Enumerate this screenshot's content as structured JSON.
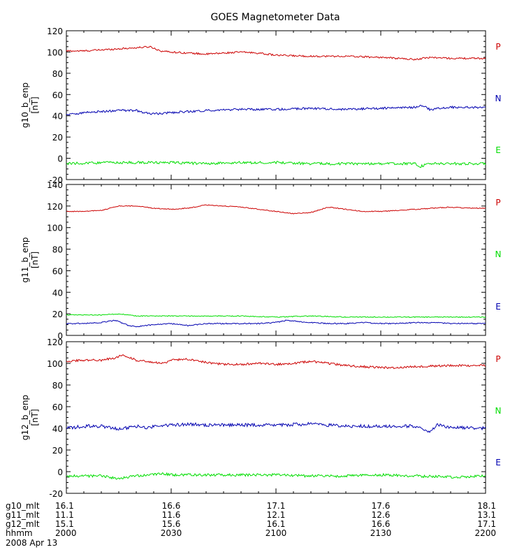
{
  "title": "GOES Magnetometer Data",
  "date_label": "2008 Apr 13",
  "colors": {
    "P": "#cc0000",
    "N": "#0000b0",
    "E": "#00dd00",
    "axis": "#000000"
  },
  "chart_data": [
    {
      "type": "line",
      "ylabel": "g10_b_enp",
      "yunit": "[nT]",
      "ylim": [
        -20,
        120
      ],
      "yticks": [
        -20,
        0,
        20,
        40,
        60,
        80,
        100,
        120
      ],
      "xlim": [
        0,
        120
      ],
      "legend": [
        "P",
        "N",
        "E"
      ],
      "legend_colors": [
        "#cc0000",
        "#0000b0",
        "#00dd00"
      ],
      "series": [
        {
          "name": "P",
          "color": "#cc0000",
          "noise": 0.8,
          "x": [
            0,
            5,
            10,
            15,
            20,
            24,
            27,
            30,
            35,
            40,
            45,
            50,
            55,
            60,
            70,
            80,
            90,
            100,
            104,
            110,
            120
          ],
          "y": [
            101,
            101,
            102,
            103,
            104,
            105,
            101,
            100,
            99,
            98,
            99,
            100,
            99,
            97,
            96,
            96,
            95,
            93,
            95,
            94,
            94
          ]
        },
        {
          "name": "N",
          "color": "#0000b0",
          "noise": 1.0,
          "x": [
            0,
            5,
            10,
            15,
            20,
            22,
            24,
            27,
            30,
            35,
            40,
            50,
            60,
            70,
            80,
            90,
            100,
            101,
            102,
            104,
            110,
            120
          ],
          "y": [
            41,
            43,
            44,
            45,
            45,
            43,
            42,
            42,
            43,
            44,
            45,
            46,
            46,
            47,
            46,
            47,
            48,
            49,
            50,
            46,
            48,
            48
          ]
        },
        {
          "name": "E",
          "color": "#00dd00",
          "noise": 1.2,
          "x": [
            0,
            10,
            20,
            30,
            40,
            50,
            60,
            70,
            80,
            90,
            100,
            101,
            102,
            104,
            110,
            120
          ],
          "y": [
            -5,
            -4,
            -4,
            -4,
            -5,
            -4,
            -4,
            -5,
            -5,
            -5,
            -5,
            -8,
            -7,
            -5,
            -5,
            -5
          ]
        }
      ]
    },
    {
      "type": "line",
      "ylabel": "g11_b_enp",
      "yunit": "[nT]",
      "ylim": [
        0,
        140
      ],
      "yticks": [
        0,
        20,
        40,
        60,
        80,
        100,
        120,
        140
      ],
      "xlim": [
        0,
        120
      ],
      "legend": [
        "P",
        "N",
        "E"
      ],
      "legend_colors": [
        "#cc0000",
        "#00dd00",
        "#0000b0"
      ],
      "series": [
        {
          "name": "P",
          "color": "#cc0000",
          "noise": 0.4,
          "x": [
            0,
            5,
            10,
            15,
            20,
            25,
            30,
            35,
            40,
            45,
            50,
            55,
            60,
            65,
            70,
            75,
            80,
            85,
            90,
            95,
            100,
            105,
            110,
            115,
            120
          ],
          "y": [
            115,
            115,
            116,
            120,
            120,
            118,
            117,
            118,
            121,
            120,
            119,
            117,
            115,
            113,
            114,
            119,
            117,
            115,
            115,
            116,
            117,
            118,
            119,
            118,
            118
          ]
        },
        {
          "name": "E",
          "color": "#00dd00",
          "noise": 0.4,
          "x": [
            0,
            10,
            15,
            20,
            30,
            40,
            50,
            60,
            70,
            80,
            90,
            100,
            110,
            120
          ],
          "y": [
            19,
            19,
            20,
            18,
            18,
            18,
            18,
            17,
            18,
            17,
            17,
            17,
            17,
            17
          ]
        },
        {
          "name": "N",
          "color": "#0000b0",
          "noise": 0.5,
          "x": [
            0,
            5,
            10,
            14,
            18,
            20,
            25,
            30,
            35,
            40,
            45,
            50,
            55,
            60,
            63,
            66,
            70,
            75,
            80,
            85,
            90,
            95,
            100,
            105,
            110,
            115,
            120
          ],
          "y": [
            11,
            11,
            12,
            14,
            9,
            8,
            10,
            11,
            9,
            11,
            11,
            11,
            11,
            12,
            14,
            13,
            12,
            11,
            11,
            12,
            11,
            11,
            12,
            12,
            11,
            11,
            11
          ]
        }
      ]
    },
    {
      "type": "line",
      "ylabel": "g12_b_enp",
      "yunit": "[nT]",
      "ylim": [
        -20,
        120
      ],
      "yticks": [
        -20,
        0,
        20,
        40,
        60,
        80,
        100,
        120
      ],
      "xlim": [
        0,
        120
      ],
      "legend": [
        "P",
        "N",
        "E"
      ],
      "legend_colors": [
        "#cc0000",
        "#00dd00",
        "#0000b0"
      ],
      "series": [
        {
          "name": "P",
          "color": "#cc0000",
          "noise": 1.0,
          "x": [
            0,
            5,
            10,
            14,
            16,
            20,
            24,
            28,
            30,
            35,
            40,
            45,
            50,
            55,
            60,
            65,
            70,
            80,
            90,
            95,
            100,
            110,
            120
          ],
          "y": [
            102,
            103,
            103,
            105,
            108,
            103,
            101,
            100,
            103,
            104,
            101,
            99,
            99,
            100,
            99,
            100,
            102,
            98,
            96,
            96,
            97,
            98,
            98
          ]
        },
        {
          "name": "N",
          "color": "#0000b0",
          "noise": 1.5,
          "x": [
            0,
            5,
            10,
            15,
            20,
            23,
            25,
            30,
            35,
            40,
            50,
            60,
            70,
            80,
            90,
            100,
            104,
            106,
            110,
            120
          ],
          "y": [
            40,
            42,
            42,
            39,
            42,
            40,
            42,
            43,
            44,
            43,
            43,
            43,
            44,
            42,
            42,
            42,
            36,
            43,
            41,
            40
          ]
        },
        {
          "name": "E",
          "color": "#00dd00",
          "noise": 1.2,
          "x": [
            0,
            10,
            14,
            16,
            20,
            28,
            30,
            40,
            50,
            60,
            70,
            80,
            90,
            100,
            110,
            120
          ],
          "y": [
            -4,
            -4,
            -6,
            -6,
            -4,
            -2,
            -3,
            -3,
            -3,
            -3,
            -4,
            -4,
            -3,
            -4,
            -5,
            -4
          ]
        }
      ]
    }
  ],
  "x_axis": {
    "tick_positions": [
      0,
      30,
      60,
      90,
      120
    ],
    "rows": [
      {
        "label": "g10_mlt",
        "values": [
          "16.1",
          "16.6",
          "17.1",
          "17.6",
          "18.1"
        ]
      },
      {
        "label": "g11_mlt",
        "values": [
          "11.1",
          "11.6",
          "12.1",
          "12.6",
          "13.1"
        ]
      },
      {
        "label": "g12_mlt",
        "values": [
          "15.1",
          "15.6",
          "16.1",
          "16.6",
          "17.1"
        ]
      },
      {
        "label": "hhmm",
        "values": [
          "2000",
          "2030",
          "2100",
          "2130",
          "2200"
        ]
      }
    ]
  }
}
